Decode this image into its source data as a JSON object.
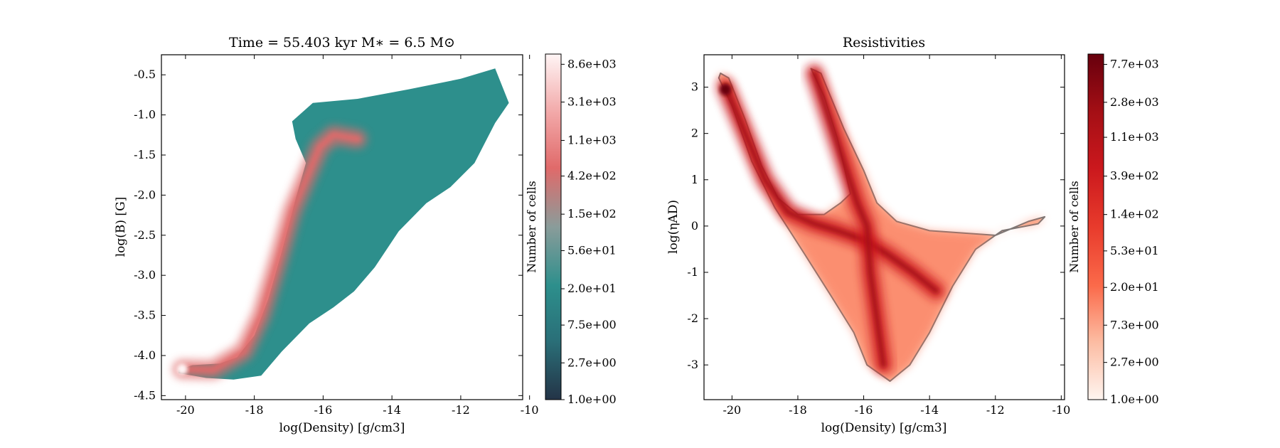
{
  "chart_data": [
    {
      "type": "heatmap",
      "title": "Time = 55.403 kyr    M$_*$ = 6.5 M$_\\odot$",
      "title_display": "Time = 55.403 kyr    M∗ = 6.5 M⊙",
      "xlabel": "log(Density) [g/cm3]",
      "ylabel": "log(B) [G]",
      "xlim": [
        -20.7,
        -10.2
      ],
      "ylim": [
        -4.55,
        -0.25
      ],
      "xticks": [
        -20,
        -18,
        -16,
        -14,
        -12,
        -10
      ],
      "xtick_labels": [
        "-20",
        "-18",
        "-16",
        "-14",
        "-12",
        "-10"
      ],
      "yticks": [
        -4.5,
        -4.0,
        -3.5,
        -3.0,
        -2.5,
        -2.0,
        -1.5,
        -1.0,
        -0.5
      ],
      "ytick_labels": [
        "-4.5",
        "-4.0",
        "-3.5",
        "-3.0",
        "-2.5",
        "-2.0",
        "-1.5",
        "-1.0",
        "-0.5"
      ],
      "colormap": [
        "#243447",
        "#2a6f78",
        "#2d8f8c",
        "#8a9c9a",
        "#e06a6a",
        "#f2a8a8",
        "#fff5f5"
      ],
      "colorbar": {
        "label": "Number of cells",
        "scale": "log",
        "ticks": [
          1.0,
          2.7,
          7.5,
          20.0,
          56.0,
          150.0,
          420.0,
          1100.0,
          3100.0,
          8600.0
        ],
        "tick_labels": [
          "1.0e+00",
          "2.7e+00",
          "7.5e+00",
          "2.0e+01",
          "5.6e+01",
          "1.5e+02",
          "4.2e+02",
          "1.1e+03",
          "3.1e+03",
          "8.6e+03"
        ]
      },
      "region_outline": [
        [
          -20.2,
          -4.18
        ],
        [
          -19.8,
          -4.12
        ],
        [
          -19.0,
          -4.1
        ],
        [
          -18.5,
          -4.02
        ],
        [
          -18.0,
          -3.75
        ],
        [
          -17.6,
          -3.3
        ],
        [
          -17.2,
          -2.7
        ],
        [
          -16.8,
          -2.05
        ],
        [
          -16.5,
          -1.6
        ],
        [
          -16.8,
          -1.3
        ],
        [
          -16.9,
          -1.08
        ],
        [
          -16.3,
          -0.85
        ],
        [
          -15.0,
          -0.8
        ],
        [
          -13.5,
          -0.68
        ],
        [
          -12.0,
          -0.55
        ],
        [
          -11.0,
          -0.42
        ],
        [
          -10.6,
          -0.85
        ],
        [
          -11.0,
          -1.1
        ],
        [
          -11.6,
          -1.6
        ],
        [
          -12.3,
          -1.9
        ],
        [
          -13.0,
          -2.1
        ],
        [
          -13.8,
          -2.45
        ],
        [
          -14.5,
          -2.9
        ],
        [
          -15.1,
          -3.2
        ],
        [
          -15.7,
          -3.4
        ],
        [
          -16.4,
          -3.6
        ],
        [
          -17.2,
          -3.95
        ],
        [
          -17.8,
          -4.25
        ],
        [
          -18.6,
          -4.3
        ],
        [
          -19.4,
          -4.28
        ],
        [
          -20.2,
          -4.22
        ]
      ],
      "ridge": [
        [
          -20.1,
          -4.17
        ],
        [
          -19.2,
          -4.18
        ],
        [
          -18.3,
          -3.95
        ],
        [
          -17.8,
          -3.5
        ],
        [
          -17.3,
          -2.8
        ],
        [
          -16.9,
          -2.2
        ],
        [
          -16.4,
          -1.7
        ],
        [
          -16.1,
          -1.4
        ],
        [
          -15.7,
          -1.25
        ],
        [
          -15.0,
          -1.3
        ]
      ],
      "peak": [
        -20.1,
        -4.17
      ]
    },
    {
      "type": "heatmap",
      "title": "Resistivities",
      "xlabel": "log(Density) [g/cm3]",
      "ylabel": "log($\\eta_{\\rm AD}$)",
      "ylabel_display": "log(ηAD)",
      "xlim": [
        -20.85,
        -9.9
      ],
      "ylim": [
        -3.75,
        3.7
      ],
      "xticks": [
        -20,
        -18,
        -16,
        -14,
        -12,
        -10
      ],
      "xtick_labels": [
        "-20",
        "-18",
        "-16",
        "-14",
        "-12",
        "-10"
      ],
      "yticks": [
        -3,
        -2,
        -1,
        0,
        1,
        2,
        3
      ],
      "ytick_labels": [
        "-3",
        "-2",
        "-1",
        "0",
        "1",
        "2",
        "3"
      ],
      "colormap": [
        "#fff5f0",
        "#fcbba1",
        "#fb6a4a",
        "#e83b2c",
        "#cb181d",
        "#a50f15",
        "#67000d"
      ],
      "colorbar": {
        "label": "Number of cells",
        "scale": "log",
        "ticks": [
          1.0,
          2.7,
          7.3,
          20.0,
          53.0,
          140.0,
          390.0,
          1100.0,
          2800.0,
          7700.0
        ],
        "tick_labels": [
          "1.0e+00",
          "2.7e+00",
          "7.3e+00",
          "2.0e+01",
          "5.3e+01",
          "1.4e+02",
          "3.9e+02",
          "1.1e+03",
          "2.8e+03",
          "7.7e+03"
        ]
      },
      "region_outline": [
        [
          -20.35,
          3.3
        ],
        [
          -20.1,
          3.2
        ],
        [
          -19.6,
          2.3
        ],
        [
          -19.1,
          1.3
        ],
        [
          -18.6,
          0.6
        ],
        [
          -18.0,
          0.25
        ],
        [
          -17.2,
          0.25
        ],
        [
          -16.7,
          0.5
        ],
        [
          -16.4,
          0.7
        ],
        [
          -16.8,
          1.9
        ],
        [
          -17.2,
          2.8
        ],
        [
          -17.6,
          3.4
        ],
        [
          -17.3,
          3.3
        ],
        [
          -16.6,
          2.1
        ],
        [
          -16.0,
          1.2
        ],
        [
          -15.6,
          0.5
        ],
        [
          -15.0,
          0.1
        ],
        [
          -14.0,
          -0.1
        ],
        [
          -13.0,
          -0.15
        ],
        [
          -12.0,
          -0.2
        ],
        [
          -11.0,
          0.1
        ],
        [
          -10.5,
          0.2
        ],
        [
          -10.7,
          0.05
        ],
        [
          -11.8,
          -0.1
        ],
        [
          -12.6,
          -0.5
        ],
        [
          -13.3,
          -1.3
        ],
        [
          -14.0,
          -2.3
        ],
        [
          -14.6,
          -3.0
        ],
        [
          -15.2,
          -3.35
        ],
        [
          -15.9,
          -3.0
        ],
        [
          -16.3,
          -2.3
        ],
        [
          -17.0,
          -1.5
        ],
        [
          -17.8,
          -0.6
        ],
        [
          -18.7,
          0.4
        ],
        [
          -19.4,
          1.4
        ],
        [
          -20.0,
          2.6
        ],
        [
          -20.4,
          3.2
        ]
      ],
      "ridges": [
        [
          [
            -20.2,
            3.0
          ],
          [
            -19.6,
            2.0
          ],
          [
            -19.0,
            1.0
          ],
          [
            -18.3,
            0.3
          ],
          [
            -17.5,
            0.05
          ],
          [
            -16.8,
            -0.1
          ],
          [
            -16.0,
            -0.3
          ],
          [
            -15.3,
            -0.6
          ],
          [
            -14.5,
            -1.0
          ],
          [
            -13.8,
            -1.4
          ]
        ],
        [
          [
            -17.5,
            3.3
          ],
          [
            -16.8,
            1.8
          ],
          [
            -16.2,
            0.5
          ],
          [
            -15.9,
            0.0
          ],
          [
            -15.8,
            -1.0
          ],
          [
            -15.6,
            -2.0
          ],
          [
            -15.4,
            -3.0
          ]
        ]
      ],
      "peak": [
        -20.2,
        2.95
      ]
    }
  ]
}
